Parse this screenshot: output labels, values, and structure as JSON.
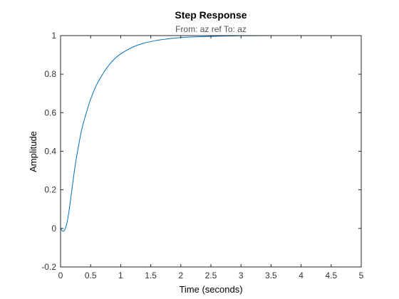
{
  "chart_data": {
    "type": "line",
    "title": "Step Response",
    "subtitle": "From: az ref  To: az",
    "xlabel": "Time (seconds)",
    "ylabel": "Amplitude",
    "xlim": [
      0,
      5
    ],
    "ylim": [
      -0.2,
      1
    ],
    "xticks": [
      "0",
      "0.5",
      "1",
      "1.5",
      "2",
      "2.5",
      "3",
      "3.5",
      "4",
      "4.5",
      "5"
    ],
    "yticks": [
      "-0.2",
      "0",
      "0.2",
      "0.4",
      "0.6",
      "0.8",
      "1"
    ],
    "grid": false,
    "reference_line": {
      "y": 1,
      "style": "dotted",
      "color": "#000000"
    },
    "series": [
      {
        "color": "#0072BD",
        "x": [
          0,
          0.02,
          0.04,
          0.06,
          0.08,
          0.1,
          0.12,
          0.15,
          0.2,
          0.25,
          0.3,
          0.35,
          0.4,
          0.5,
          0.6,
          0.7,
          0.8,
          0.9,
          1.0,
          1.2,
          1.4,
          1.6,
          1.8,
          2.0,
          2.2,
          2.5,
          2.8,
          3.0,
          3.5,
          4.0,
          4.5,
          5.0
        ],
        "y": [
          0,
          -0.01,
          -0.015,
          -0.012,
          0.0,
          0.02,
          0.05,
          0.11,
          0.23,
          0.34,
          0.43,
          0.51,
          0.57,
          0.67,
          0.745,
          0.8,
          0.845,
          0.88,
          0.905,
          0.94,
          0.962,
          0.975,
          0.984,
          0.99,
          0.993,
          0.996,
          0.998,
          0.999,
          1.0,
          1.0,
          1.0,
          1.0
        ]
      }
    ]
  }
}
